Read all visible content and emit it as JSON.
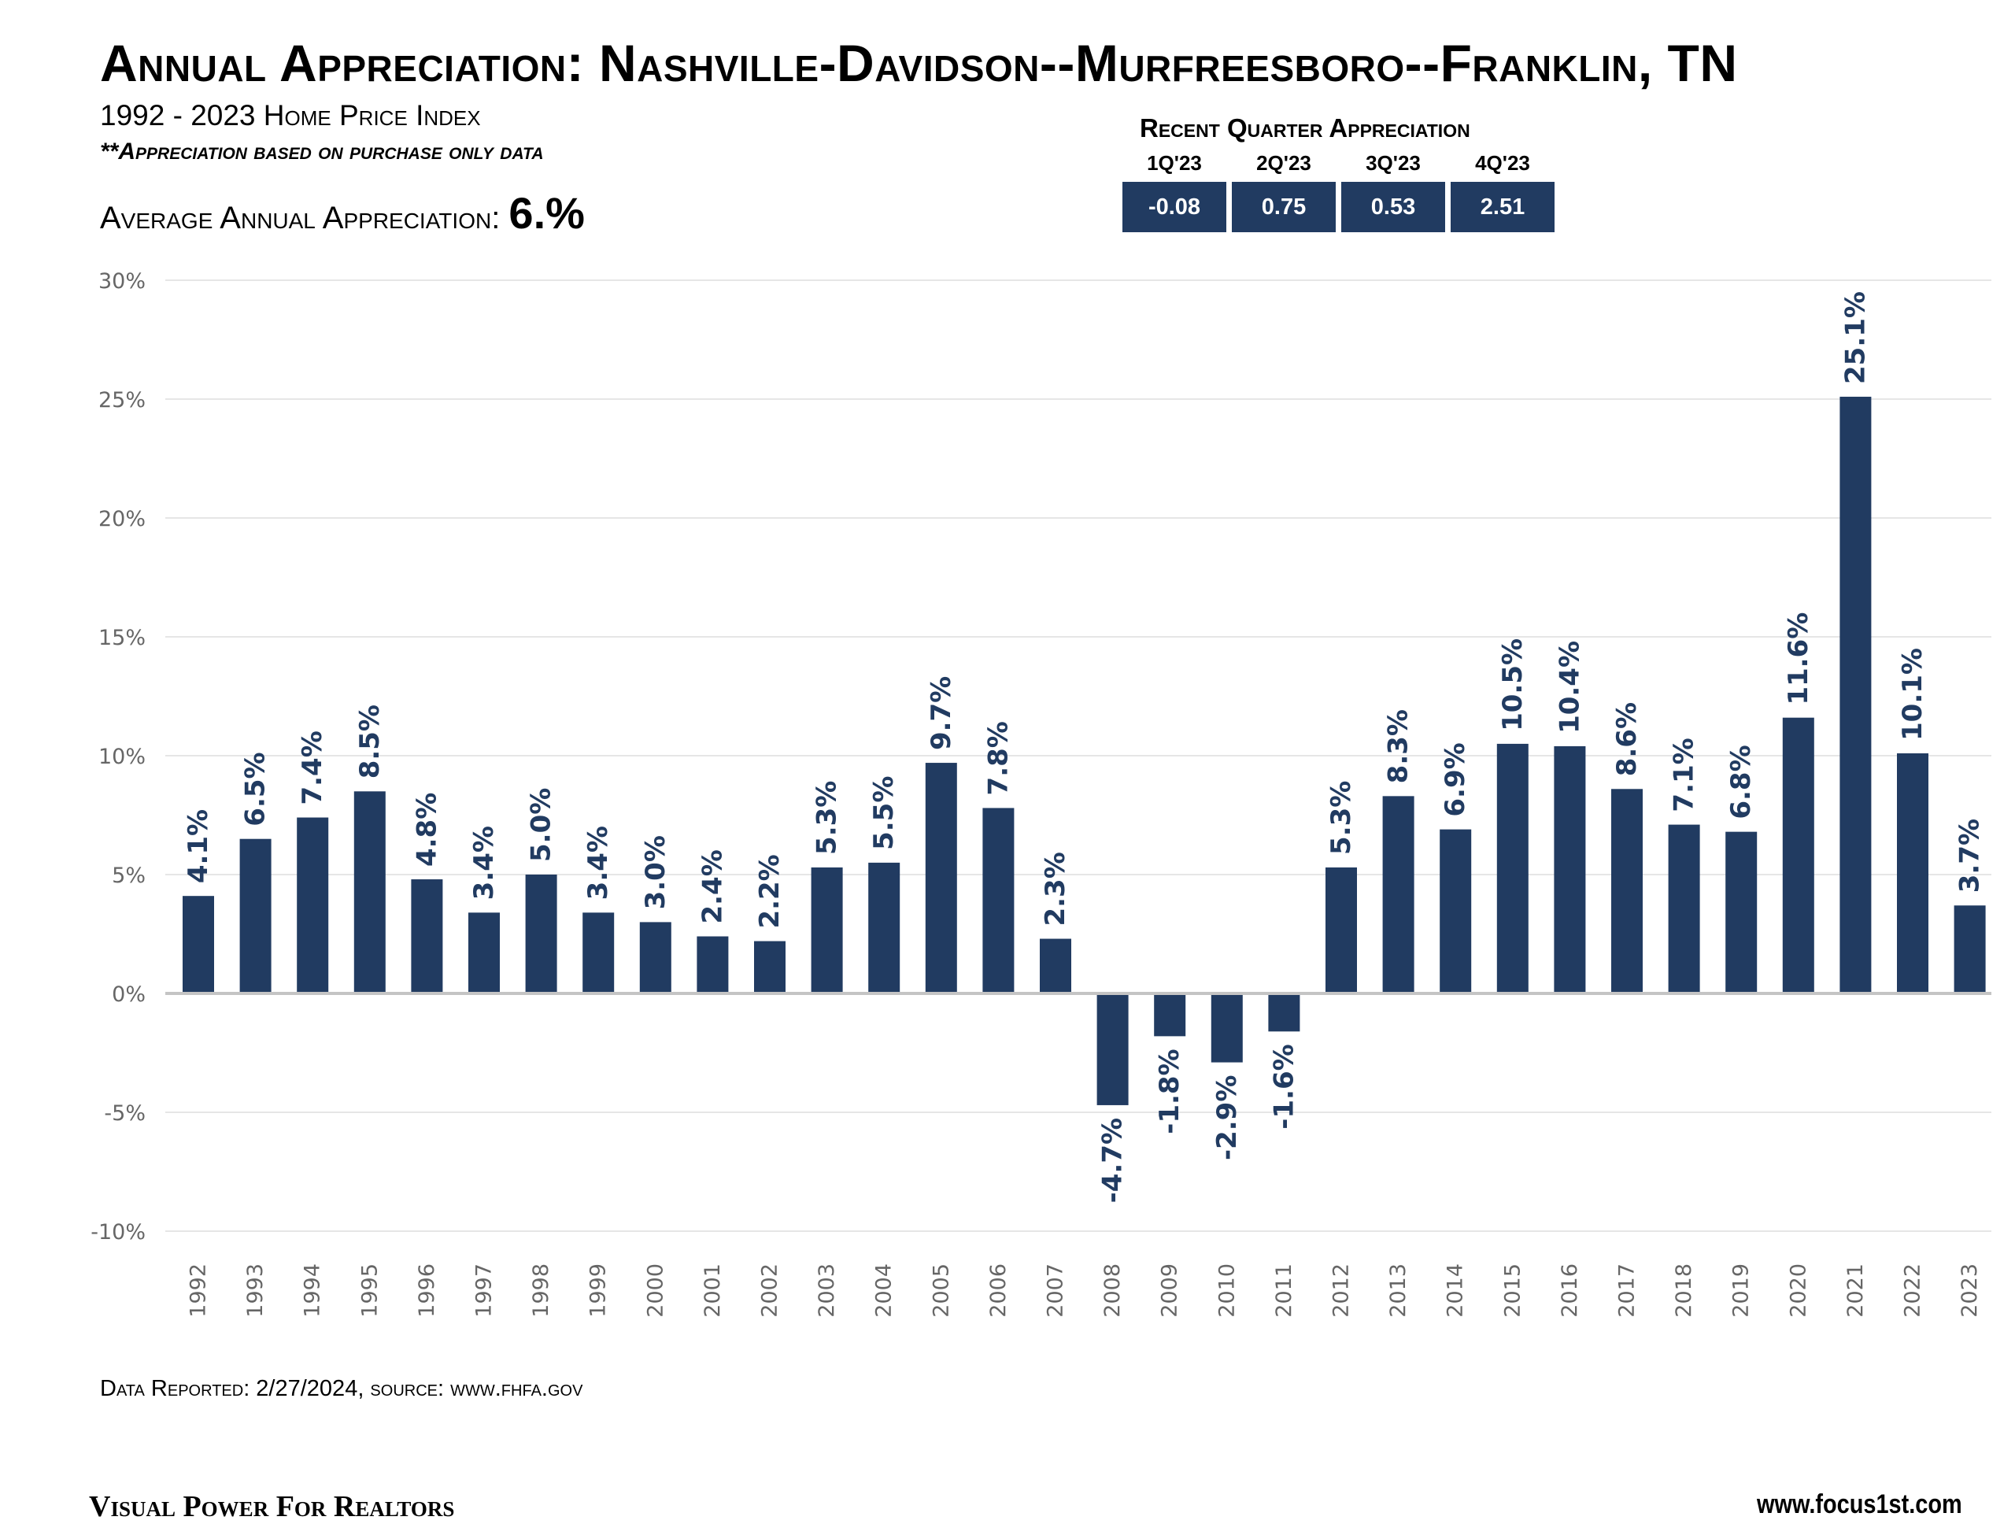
{
  "header": {
    "title": "Annual Appreciation: Nashville-Davidson--Murfreesboro--Franklin, TN",
    "subtitle": "1992 - 2023 Home Price Index",
    "note": "**Appreciation based on purchase only data",
    "avg_label": "Average Annual Appreciation: ",
    "avg_value": "6.%"
  },
  "recent_quarters": {
    "title": "Recent Quarter Appreciation",
    "quarters": [
      {
        "label": "1Q'23",
        "value": "-0.08"
      },
      {
        "label": "2Q'23",
        "value": "0.75"
      },
      {
        "label": "3Q'23",
        "value": "0.53"
      },
      {
        "label": "4Q'23",
        "value": "2.51"
      }
    ]
  },
  "footer": {
    "reported": "Data Reported: 2/27/2024, source: www.fhfa.gov",
    "brand": "Visual Power For Realtors",
    "site": "www.focus1st.com"
  },
  "chart_data": {
    "type": "bar",
    "categories": [
      "1992",
      "1993",
      "1994",
      "1995",
      "1996",
      "1997",
      "1998",
      "1999",
      "2000",
      "2001",
      "2002",
      "2003",
      "2004",
      "2005",
      "2006",
      "2007",
      "2008",
      "2009",
      "2010",
      "2011",
      "2012",
      "2013",
      "2014",
      "2015",
      "2016",
      "2017",
      "2018",
      "2019",
      "2020",
      "2021",
      "2022",
      "2023"
    ],
    "values": [
      4.1,
      6.5,
      7.4,
      8.5,
      4.8,
      3.4,
      5.0,
      3.4,
      3.0,
      2.4,
      2.2,
      5.3,
      5.5,
      9.7,
      7.8,
      2.3,
      -4.7,
      -1.8,
      -2.9,
      -1.6,
      5.3,
      8.3,
      6.9,
      10.5,
      10.4,
      8.6,
      7.1,
      6.8,
      11.6,
      25.1,
      10.1,
      3.7
    ],
    "data_labels": [
      "4.1%",
      "6.5%",
      "7.4%",
      "8.5%",
      "4.8%",
      "3.4%",
      "5.0%",
      "3.4%",
      "3.0%",
      "2.4%",
      "2.2%",
      "5.3%",
      "5.5%",
      "9.7%",
      "7.8%",
      "2.3%",
      "-4.7%",
      "-1.8%",
      "-2.9%",
      "-1.6%",
      "5.3%",
      "8.3%",
      "6.9%",
      "10.5%",
      "10.4%",
      "8.6%",
      "7.1%",
      "6.8%",
      "11.6%",
      "25.1%",
      "10.1%",
      "3.7%"
    ],
    "yticks": [
      30,
      25,
      20,
      15,
      10,
      5,
      0,
      -5,
      -10
    ],
    "ytick_labels": [
      "30%",
      "25%",
      "20%",
      "15%",
      "10%",
      "5%",
      "0%",
      "-5%",
      "-10%"
    ],
    "ylim": [
      -10,
      30
    ],
    "grid": true,
    "bar_color": "#213b61",
    "label_color": "#213b61"
  }
}
